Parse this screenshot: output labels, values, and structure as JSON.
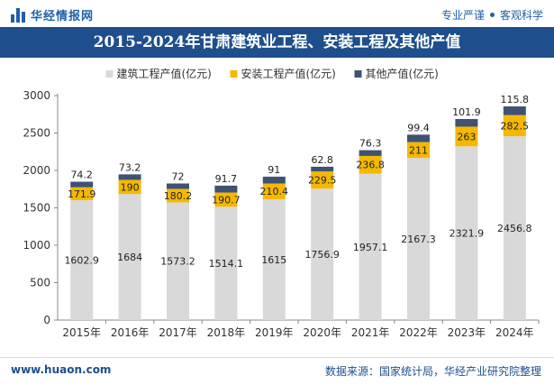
{
  "header": {
    "brand": "华经情报网",
    "tagline_left": "专业严谨",
    "tagline_right": "客观科学"
  },
  "footer": {
    "url": "www.huaon.com",
    "source": "数据来源：国家统计局，华经产业研究院整理"
  },
  "colors": {
    "construction": "#d9d9d9",
    "installation": "#f5b800",
    "other": "#3f5273",
    "title_bg": "#1e4f8c"
  },
  "chart_data": {
    "type": "bar",
    "stacked": true,
    "title": "2015-2024年甘肃建筑业工程、安装工程及其他产值",
    "categories": [
      "2015年",
      "2016年",
      "2017年",
      "2018年",
      "2019年",
      "2020年",
      "2021年",
      "2022年",
      "2023年",
      "2024年"
    ],
    "series": [
      {
        "name": "建筑工程产值(亿元)",
        "values": [
          1602.9,
          1684,
          1573.2,
          1514.1,
          1615,
          1756.9,
          1957.1,
          2167.3,
          2321.9,
          2456.8
        ]
      },
      {
        "name": "安装工程产值(亿元)",
        "values": [
          171.9,
          190,
          180.2,
          190.7,
          210.4,
          229.5,
          236.8,
          211,
          263,
          282.5
        ]
      },
      {
        "name": "其他产值(亿元)",
        "values": [
          74.2,
          73.2,
          72,
          91.7,
          91,
          62.8,
          76.3,
          99.4,
          101.9,
          115.8
        ]
      }
    ],
    "ylim": [
      0,
      3000
    ],
    "yticks": [
      0,
      500,
      1000,
      1500,
      2000,
      2500,
      3000
    ],
    "xlabel": "",
    "ylabel": "",
    "legend": "top-center",
    "grid": false
  }
}
